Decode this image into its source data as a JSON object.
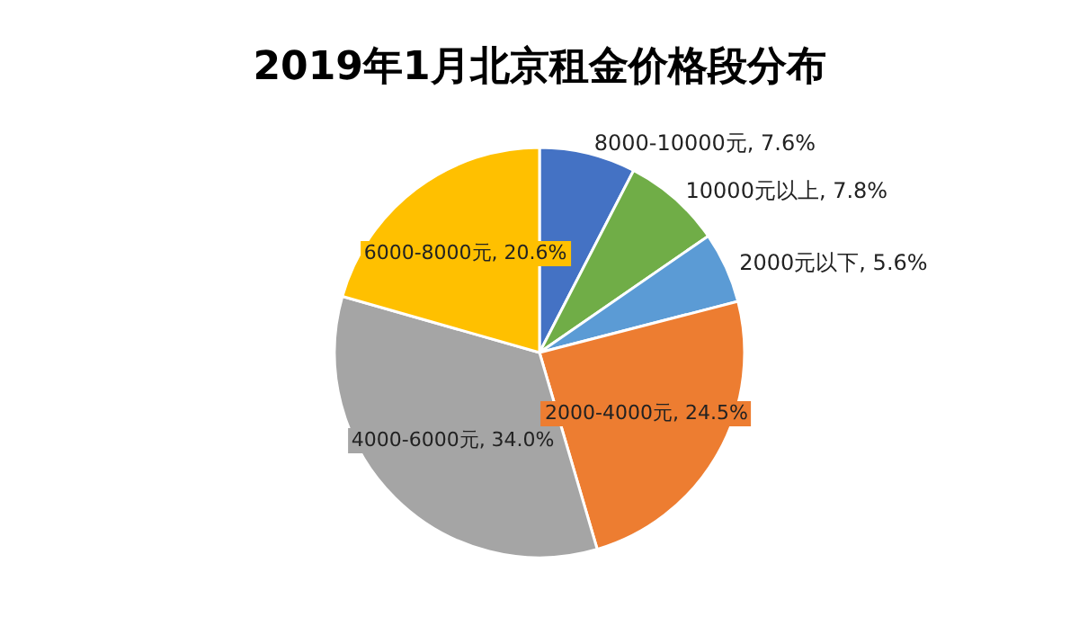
{
  "chart_data": {
    "type": "pie",
    "title": "2019年1月北京租金价格段分布",
    "categories": [
      "8000-10000元",
      "10000元以上",
      "2000元以下",
      "2000-4000元",
      "4000-6000元",
      "6000-8000元"
    ],
    "values": [
      7.6,
      7.8,
      5.6,
      24.5,
      34.0,
      20.6
    ],
    "value_labels": [
      "7.6%",
      "7.8%",
      "5.6%",
      "24.5%",
      "34.0%",
      "20.6%"
    ],
    "colors": [
      "#4472c4",
      "#70ad47",
      "#5b9bd5",
      "#ed7d31",
      "#a5a5a5",
      "#ffc000"
    ]
  }
}
